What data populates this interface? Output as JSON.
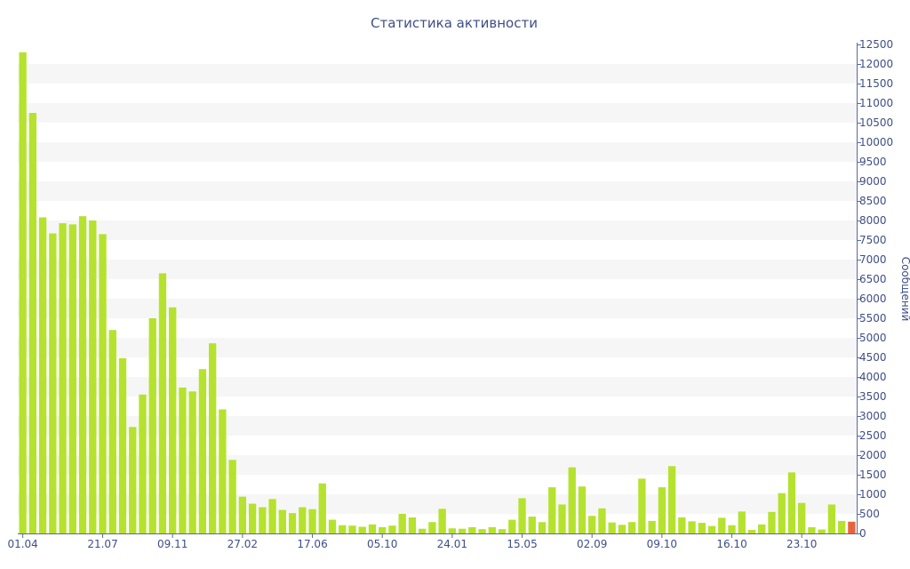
{
  "chart_data": {
    "type": "bar",
    "title": "Статистика активности",
    "xlabel": "",
    "ylabel": "Сообщений",
    "ylim": [
      0,
      12500
    ],
    "y_ticks": [
      0,
      500,
      1000,
      1500,
      2000,
      2500,
      3000,
      3500,
      4000,
      4500,
      5000,
      5500,
      6000,
      6500,
      7000,
      7500,
      8000,
      8500,
      9000,
      9500,
      10000,
      10500,
      11000,
      11500,
      12000,
      12500
    ],
    "x_tick_labels": [
      {
        "index": 0,
        "label": "01.04"
      },
      {
        "index": 8,
        "label": "21.07"
      },
      {
        "index": 15,
        "label": "09.11"
      },
      {
        "index": 22,
        "label": "27.02"
      },
      {
        "index": 29,
        "label": "17.06"
      },
      {
        "index": 36,
        "label": "05.10"
      },
      {
        "index": 43,
        "label": "24.01"
      },
      {
        "index": 50,
        "label": "15.05"
      },
      {
        "index": 57,
        "label": "02.09"
      },
      {
        "index": 64,
        "label": "09.10"
      },
      {
        "index": 71,
        "label": "16.10"
      },
      {
        "index": 78,
        "label": "23.10"
      }
    ],
    "values": [
      12300,
      10750,
      8080,
      7670,
      7930,
      7900,
      8110,
      8000,
      7650,
      5200,
      4480,
      2720,
      3550,
      5500,
      6650,
      5780,
      3730,
      3630,
      4200,
      4860,
      3170,
      1880,
      940,
      760,
      670,
      880,
      600,
      520,
      670,
      620,
      1280,
      350,
      210,
      200,
      170,
      230,
      160,
      200,
      500,
      410,
      120,
      290,
      630,
      130,
      120,
      160,
      110,
      160,
      110,
      350,
      900,
      430,
      290,
      1180,
      740,
      1690,
      1200,
      450,
      640,
      280,
      220,
      290,
      1400,
      320,
      1180,
      1720,
      410,
      310,
      270,
      190,
      400,
      210,
      560,
      90,
      230,
      550,
      1030,
      1560,
      780,
      160,
      100,
      740,
      320,
      300
    ],
    "highlight_last": true,
    "colors": {
      "bar": "#b5e22e",
      "highlight": "#e8653c",
      "text": "#3e4e86",
      "band": "#f6f6f6",
      "axis": "#5a6a9a"
    },
    "grid": "alternating horizontal bands"
  }
}
